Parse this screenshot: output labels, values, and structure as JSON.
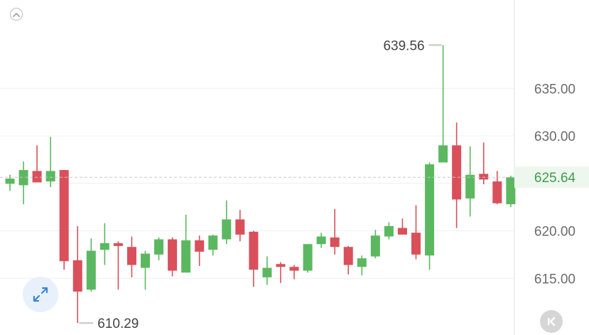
{
  "chart_data": {
    "type": "candlestick",
    "title": "",
    "xlabel": "",
    "ylabel": "",
    "ylim": [
      608.5,
      640.5
    ],
    "y_ticks": [
      "635.00",
      "630.00",
      "620.00",
      "615.00"
    ],
    "current_price": "625.64",
    "high_label": "639.56",
    "low_label": "610.29",
    "grid": true,
    "colors": {
      "up": "#5cb860",
      "down": "#d9505a",
      "current": "#3e9c4d"
    },
    "candles": [
      {
        "o": 624.95,
        "h": 625.9,
        "l": 624.2,
        "c": 625.5
      },
      {
        "o": 624.8,
        "h": 627.3,
        "l": 622.8,
        "c": 626.4
      },
      {
        "o": 626.3,
        "h": 629.0,
        "l": 625.3,
        "c": 625.1
      },
      {
        "o": 625.2,
        "h": 629.9,
        "l": 624.6,
        "c": 626.3
      },
      {
        "o": 626.4,
        "h": 626.4,
        "l": 615.9,
        "c": 616.8
      },
      {
        "o": 616.9,
        "h": 620.5,
        "l": 610.29,
        "c": 613.6
      },
      {
        "o": 613.8,
        "h": 619.2,
        "l": 613.6,
        "c": 617.9
      },
      {
        "o": 618.0,
        "h": 620.8,
        "l": 616.4,
        "c": 618.7
      },
      {
        "o": 618.7,
        "h": 618.9,
        "l": 613.8,
        "c": 618.4
      },
      {
        "o": 618.3,
        "h": 619.4,
        "l": 615.1,
        "c": 616.4
      },
      {
        "o": 616.1,
        "h": 617.9,
        "l": 613.8,
        "c": 617.6
      },
      {
        "o": 617.5,
        "h": 619.3,
        "l": 616.9,
        "c": 619.1
      },
      {
        "o": 619.1,
        "h": 619.3,
        "l": 615.2,
        "c": 615.8
      },
      {
        "o": 615.6,
        "h": 621.7,
        "l": 615.6,
        "c": 619.0
      },
      {
        "o": 619.0,
        "h": 619.5,
        "l": 616.3,
        "c": 617.8
      },
      {
        "o": 618.0,
        "h": 619.6,
        "l": 617.4,
        "c": 619.5
      },
      {
        "o": 619.1,
        "h": 623.2,
        "l": 618.6,
        "c": 621.2
      },
      {
        "o": 621.2,
        "h": 622.2,
        "l": 618.9,
        "c": 619.6
      },
      {
        "o": 619.9,
        "h": 620.0,
        "l": 614.1,
        "c": 615.9
      },
      {
        "o": 615.1,
        "h": 617.3,
        "l": 614.3,
        "c": 616.1
      },
      {
        "o": 616.5,
        "h": 616.7,
        "l": 614.5,
        "c": 616.2
      },
      {
        "o": 616.2,
        "h": 616.4,
        "l": 614.9,
        "c": 615.8
      },
      {
        "o": 615.8,
        "h": 618.6,
        "l": 615.6,
        "c": 618.6
      },
      {
        "o": 618.6,
        "h": 619.8,
        "l": 618.2,
        "c": 619.4
      },
      {
        "o": 619.3,
        "h": 622.3,
        "l": 617.5,
        "c": 618.3
      },
      {
        "o": 618.3,
        "h": 618.4,
        "l": 615.4,
        "c": 616.4
      },
      {
        "o": 616.2,
        "h": 617.4,
        "l": 615.3,
        "c": 617.1
      },
      {
        "o": 617.3,
        "h": 620.1,
        "l": 617.1,
        "c": 619.5
      },
      {
        "o": 619.4,
        "h": 620.9,
        "l": 619.1,
        "c": 620.5
      },
      {
        "o": 620.3,
        "h": 621.3,
        "l": 619.6,
        "c": 619.6
      },
      {
        "o": 619.8,
        "h": 622.7,
        "l": 617.0,
        "c": 617.5
      },
      {
        "o": 617.4,
        "h": 627.2,
        "l": 615.9,
        "c": 627.0
      },
      {
        "o": 627.2,
        "h": 639.56,
        "l": 627.2,
        "c": 629.0
      },
      {
        "o": 629.0,
        "h": 631.4,
        "l": 620.3,
        "c": 623.3
      },
      {
        "o": 623.4,
        "h": 628.9,
        "l": 621.5,
        "c": 625.9
      },
      {
        "o": 626.0,
        "h": 629.3,
        "l": 624.9,
        "c": 625.4
      },
      {
        "o": 625.2,
        "h": 626.3,
        "l": 622.8,
        "c": 622.9
      },
      {
        "o": 622.8,
        "h": 625.8,
        "l": 622.5,
        "c": 625.64
      }
    ]
  },
  "icons": {
    "collapse": "chevron-up-icon",
    "expand": "expand-arrows-icon",
    "rewind": "skip-to-start-icon"
  }
}
